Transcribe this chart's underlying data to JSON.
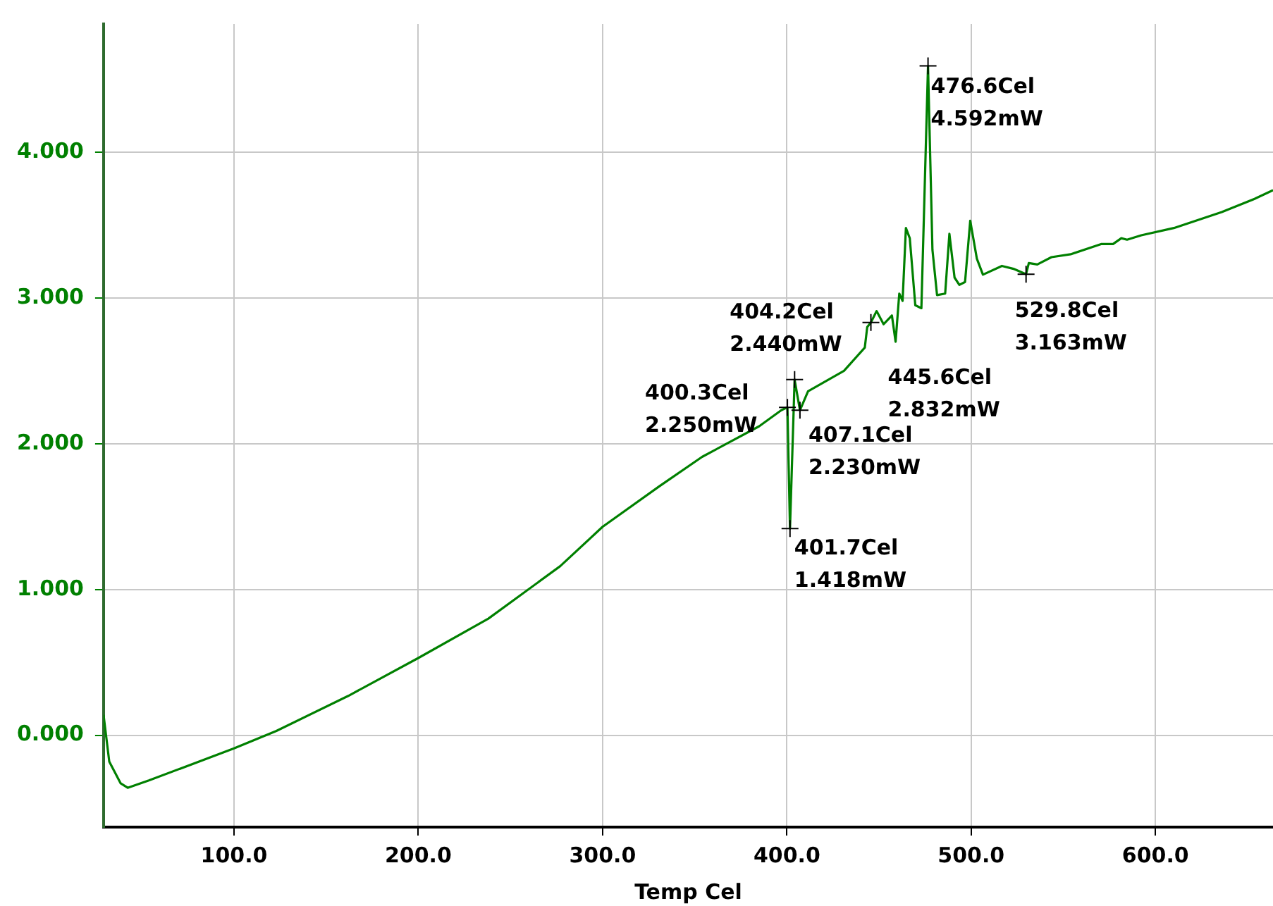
{
  "chart_data": {
    "type": "line",
    "xlabel": "Temp Cel",
    "x": [
      29.2,
      32.3,
      38.5,
      42.3,
      53.8,
      100,
      123,
      162,
      200,
      238,
      277,
      300,
      331,
      354,
      385,
      397,
      400.3,
      401.7,
      404.2,
      407.1,
      411.5,
      431,
      442.3,
      443.6,
      445.6,
      448.7,
      452.5,
      457,
      459,
      461,
      462.8,
      464.6,
      466.7,
      469.7,
      473,
      476.6,
      479,
      481.5,
      485.9,
      488.2,
      491,
      493.6,
      496.7,
      499.5,
      503.1,
      506.4,
      516.7,
      523,
      529.8,
      531.3,
      535.9,
      543.6,
      554,
      570.5,
      577,
      581.5,
      584.6,
      592.3,
      610,
      636,
      653.8,
      663.8
    ],
    "series": [
      {
        "color": "#008000",
        "values": [
          0.14,
          -0.18,
          -0.33,
          -0.36,
          -0.31,
          -0.09,
          0.03,
          0.27,
          0.53,
          0.8,
          1.16,
          1.43,
          1.71,
          1.91,
          2.12,
          2.23,
          2.25,
          1.418,
          2.44,
          2.23,
          2.36,
          2.5,
          2.66,
          2.8,
          2.832,
          2.91,
          2.82,
          2.88,
          2.7,
          3.03,
          2.98,
          3.48,
          3.41,
          2.95,
          2.93,
          4.592,
          3.33,
          3.02,
          3.03,
          3.44,
          3.14,
          3.09,
          3.11,
          3.53,
          3.27,
          3.16,
          3.22,
          3.2,
          3.163,
          3.24,
          3.23,
          3.28,
          3.3,
          3.37,
          3.37,
          3.41,
          3.4,
          3.43,
          3.48,
          3.59,
          3.68,
          3.74
        ]
      }
    ],
    "xlim": [
      29.2,
      663.8
    ],
    "ylim": [
      -0.63,
      4.88
    ],
    "xticks": [
      {
        "value": 100,
        "label": "100.0"
      },
      {
        "value": 200,
        "label": "200.0"
      },
      {
        "value": 300,
        "label": "300.0"
      },
      {
        "value": 400,
        "label": "400.0"
      },
      {
        "value": 500,
        "label": "500.0"
      },
      {
        "value": 600,
        "label": "600.0"
      }
    ],
    "yticks": [
      {
        "value": 0,
        "label": "0.000"
      },
      {
        "value": 1,
        "label": "1.000"
      },
      {
        "value": 2,
        "label": "2.000"
      },
      {
        "value": 3,
        "label": "3.000"
      },
      {
        "value": 4,
        "label": "4.000"
      }
    ],
    "grid": true,
    "legend": false,
    "marker": "none",
    "line_style": "solid",
    "annotations": [
      {
        "text": "476.6Cel\n4.592mW",
        "x": 476.6,
        "y": 4.592
      },
      {
        "text": "404.2Cel\n2.440mW",
        "x": 404.2,
        "y": 2.44
      },
      {
        "text": "400.3Cel\n2.250mW",
        "x": 400.3,
        "y": 2.25
      },
      {
        "text": "401.7Cel\n1.418mW",
        "x": 401.7,
        "y": 1.418
      },
      {
        "text": "407.1Cel\n2.230mW",
        "x": 407.1,
        "y": 2.23
      },
      {
        "text": "445.6Cel\n2.832mW",
        "x": 445.6,
        "y": 2.832
      },
      {
        "text": "529.8Cel\n3.163mW",
        "x": 529.8,
        "y": 3.163
      }
    ]
  }
}
